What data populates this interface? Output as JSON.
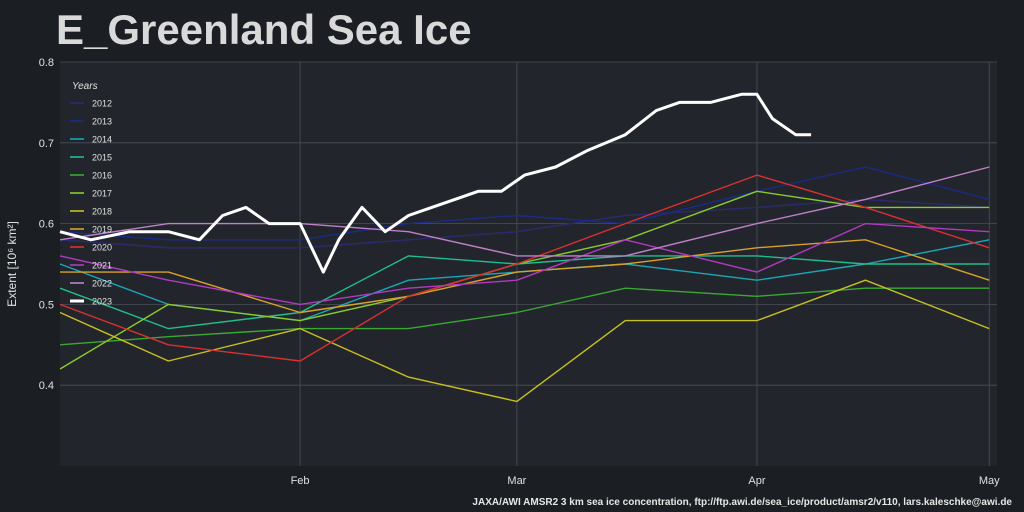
{
  "chart_data": {
    "type": "line",
    "title": "E_Greenland Sea Ice",
    "ylabel": "Extent [10⁶ km²]",
    "xlabel": "",
    "source": "JAXA/AWI AMSR2 3 km sea ice concentration, ftp://ftp.awi.de/sea_ice/product/amsr2/v110, lars.kaleschke@awi.de",
    "ylim": [
      0.3,
      0.8
    ],
    "xlim": [
      "2023-01-01",
      "2023-05-02"
    ],
    "yticks": [
      0.4,
      0.5,
      0.6,
      0.7,
      0.8
    ],
    "xticks": [
      {
        "date": "2023-02-01",
        "label": "Feb"
      },
      {
        "date": "2023-03-01",
        "label": "Mar"
      },
      {
        "date": "2023-04-01",
        "label": "Apr"
      },
      {
        "date": "2023-05-01",
        "label": "May"
      }
    ],
    "grid": true,
    "legend": {
      "title": "Years",
      "position": "upper-left"
    },
    "series": [
      {
        "name": "2012",
        "color": "#2a2b6e",
        "dates": [
          "2023-01-01",
          "2023-01-15",
          "2023-02-01",
          "2023-02-15",
          "2023-03-01",
          "2023-03-15",
          "2023-04-01",
          "2023-04-15",
          "2023-05-01"
        ],
        "values": [
          0.58,
          0.57,
          0.57,
          0.58,
          0.59,
          0.61,
          0.62,
          0.63,
          0.62
        ]
      },
      {
        "name": "2013",
        "color": "#1a2a8a",
        "dates": [
          "2023-01-01",
          "2023-01-15",
          "2023-02-01",
          "2023-02-15",
          "2023-03-01",
          "2023-03-15",
          "2023-04-01",
          "2023-04-15",
          "2023-05-01"
        ],
        "values": [
          0.59,
          0.58,
          0.58,
          0.6,
          0.61,
          0.6,
          0.64,
          0.67,
          0.63
        ]
      },
      {
        "name": "2014",
        "color": "#1aa6b8",
        "dates": [
          "2023-01-01",
          "2023-01-15",
          "2023-02-01",
          "2023-02-15",
          "2023-03-01",
          "2023-03-15",
          "2023-04-01",
          "2023-04-15",
          "2023-05-01"
        ],
        "values": [
          0.55,
          0.5,
          0.48,
          0.53,
          0.54,
          0.55,
          0.53,
          0.55,
          0.58
        ]
      },
      {
        "name": "2015",
        "color": "#1fbf8a",
        "dates": [
          "2023-01-01",
          "2023-01-15",
          "2023-02-01",
          "2023-02-15",
          "2023-03-01",
          "2023-03-15",
          "2023-04-01",
          "2023-04-15",
          "2023-05-01"
        ],
        "values": [
          0.52,
          0.47,
          0.49,
          0.56,
          0.55,
          0.56,
          0.56,
          0.55,
          0.55
        ]
      },
      {
        "name": "2016",
        "color": "#3aa832",
        "dates": [
          "2023-01-01",
          "2023-01-15",
          "2023-02-01",
          "2023-02-15",
          "2023-03-01",
          "2023-03-15",
          "2023-04-01",
          "2023-04-15",
          "2023-05-01"
        ],
        "values": [
          0.45,
          0.46,
          0.47,
          0.47,
          0.49,
          0.52,
          0.51,
          0.52,
          0.52
        ]
      },
      {
        "name": "2017",
        "color": "#8acb2a",
        "dates": [
          "2023-01-01",
          "2023-01-15",
          "2023-02-01",
          "2023-02-15",
          "2023-03-01",
          "2023-03-15",
          "2023-04-01",
          "2023-04-15",
          "2023-05-01"
        ],
        "values": [
          0.42,
          0.5,
          0.48,
          0.51,
          0.55,
          0.58,
          0.64,
          0.62,
          0.62
        ]
      },
      {
        "name": "2018",
        "color": "#c8c020",
        "dates": [
          "2023-01-01",
          "2023-01-15",
          "2023-02-01",
          "2023-02-15",
          "2023-03-01",
          "2023-03-15",
          "2023-04-01",
          "2023-04-15",
          "2023-05-01"
        ],
        "values": [
          0.49,
          0.43,
          0.47,
          0.41,
          0.38,
          0.48,
          0.48,
          0.53,
          0.47
        ]
      },
      {
        "name": "2019",
        "color": "#d9a02a",
        "dates": [
          "2023-01-01",
          "2023-01-15",
          "2023-02-01",
          "2023-02-15",
          "2023-03-01",
          "2023-03-15",
          "2023-04-01",
          "2023-04-15",
          "2023-05-01"
        ],
        "values": [
          0.54,
          0.54,
          0.49,
          0.51,
          0.54,
          0.55,
          0.57,
          0.58,
          0.53
        ]
      },
      {
        "name": "2020",
        "color": "#d93030",
        "dates": [
          "2023-01-01",
          "2023-01-15",
          "2023-02-01",
          "2023-02-15",
          "2023-03-01",
          "2023-03-15",
          "2023-04-01",
          "2023-04-15",
          "2023-05-01"
        ],
        "values": [
          0.5,
          0.45,
          0.43,
          0.51,
          0.55,
          0.6,
          0.66,
          0.62,
          0.57
        ]
      },
      {
        "name": "2021",
        "color": "#b03ac0",
        "dates": [
          "2023-01-01",
          "2023-01-15",
          "2023-02-01",
          "2023-02-15",
          "2023-03-01",
          "2023-03-15",
          "2023-04-01",
          "2023-04-15",
          "2023-05-01"
        ],
        "values": [
          0.56,
          0.53,
          0.5,
          0.52,
          0.53,
          0.58,
          0.54,
          0.6,
          0.59
        ]
      },
      {
        "name": "2022",
        "color": "#c080c8",
        "dates": [
          "2023-01-01",
          "2023-01-15",
          "2023-02-01",
          "2023-02-15",
          "2023-03-01",
          "2023-03-15",
          "2023-04-01",
          "2023-04-15",
          "2023-05-01"
        ],
        "values": [
          0.58,
          0.6,
          0.6,
          0.59,
          0.56,
          0.56,
          0.6,
          0.63,
          0.67
        ]
      },
      {
        "name": "2023",
        "color": "#ffffff",
        "dates": [
          "2023-01-01",
          "2023-01-05",
          "2023-01-10",
          "2023-01-15",
          "2023-01-19",
          "2023-01-22",
          "2023-01-25",
          "2023-01-28",
          "2023-02-01",
          "2023-02-04",
          "2023-02-06",
          "2023-02-09",
          "2023-02-12",
          "2023-02-15",
          "2023-02-18",
          "2023-02-21",
          "2023-02-24",
          "2023-02-27",
          "2023-03-02",
          "2023-03-06",
          "2023-03-10",
          "2023-03-15",
          "2023-03-19",
          "2023-03-22",
          "2023-03-26",
          "2023-03-30",
          "2023-04-01",
          "2023-04-03",
          "2023-04-06",
          "2023-04-08"
        ],
        "values": [
          0.59,
          0.58,
          0.59,
          0.59,
          0.58,
          0.61,
          0.62,
          0.6,
          0.6,
          0.54,
          0.58,
          0.62,
          0.59,
          0.61,
          0.62,
          0.63,
          0.64,
          0.64,
          0.66,
          0.67,
          0.69,
          0.71,
          0.74,
          0.75,
          0.75,
          0.76,
          0.76,
          0.73,
          0.71,
          0.71
        ]
      }
    ]
  }
}
